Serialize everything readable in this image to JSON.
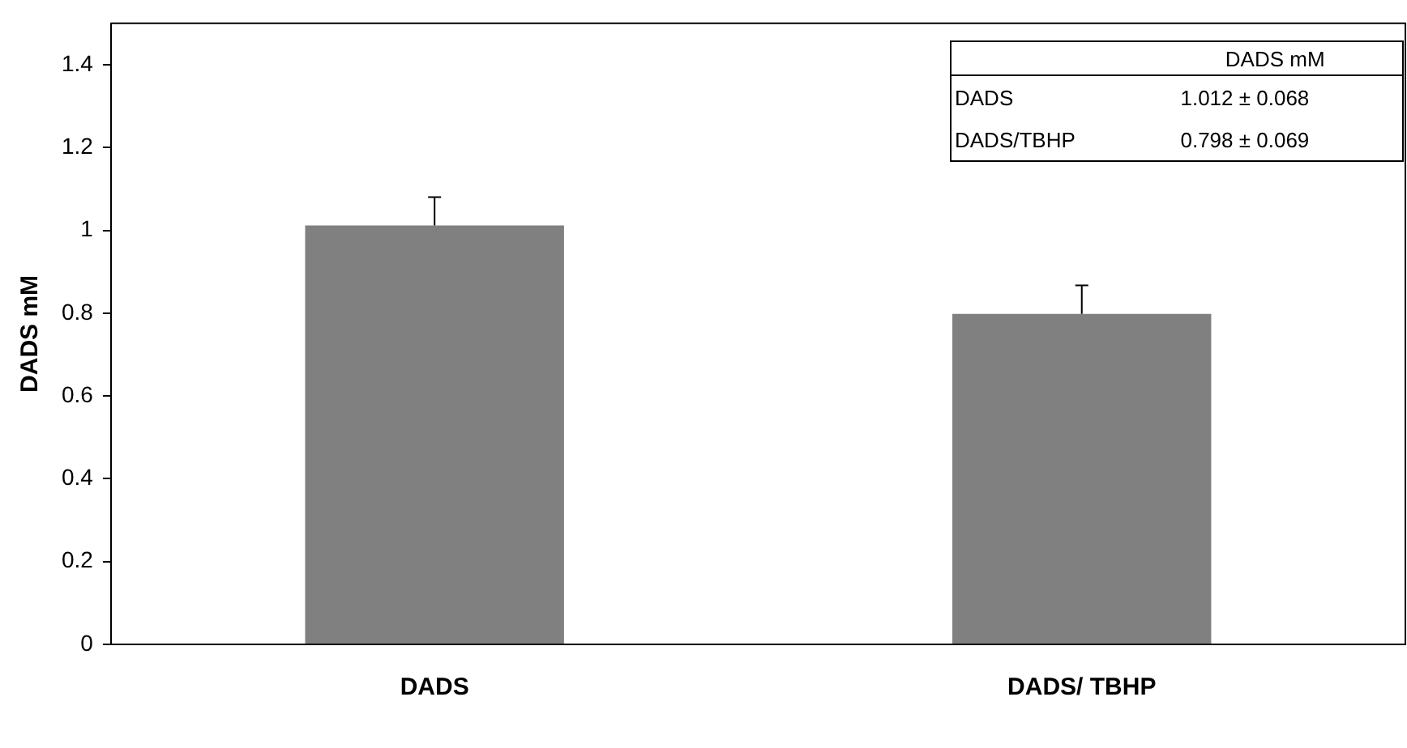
{
  "chart_data": {
    "type": "bar",
    "ylabel": "DADS mM",
    "categories": [
      "DADS",
      "DADS/ TBHP"
    ],
    "values": [
      1.012,
      0.798
    ],
    "color": "#808080",
    "errors": [
      [
        1.012,
        1.08
      ],
      [
        0.798,
        0.867
      ]
    ],
    "annotations": [
      "DADS mM",
      "DADS",
      "1.012 ± 0.068",
      "DADS/TBHP",
      "0.798 ± 0.069"
    ],
    "ylim": [
      0,
      1.5
    ],
    "yticks": [
      0,
      0.2,
      0.4,
      0.6,
      0.8,
      1,
      1.2,
      1.4
    ],
    "grid": false,
    "legend": false
  }
}
